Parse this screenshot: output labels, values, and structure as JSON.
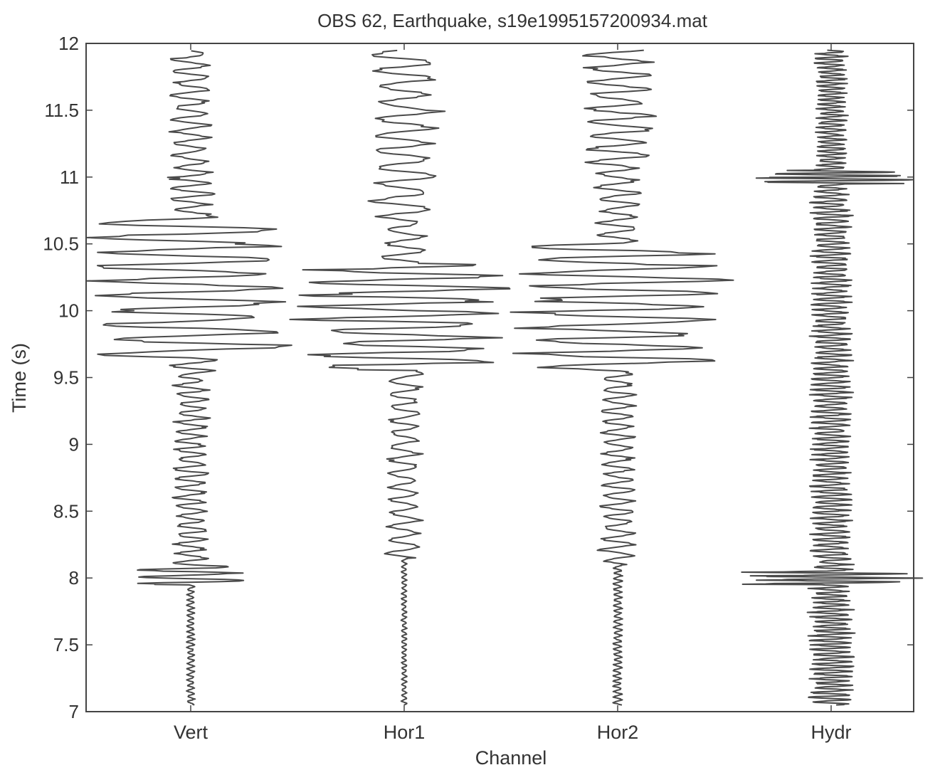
{
  "chart_data": {
    "type": "line",
    "title": "OBS 62, Earthquake,  s19e1995157200934.mat",
    "xlabel": "Channel",
    "ylabel": "Time (s)",
    "ylim": [
      7,
      12
    ],
    "yticks": [
      "7",
      "7.5",
      "8",
      "8.5",
      "9",
      "9.5",
      "10",
      "10.5",
      "11",
      "11.5",
      "12"
    ],
    "categories": [
      "Vert",
      "Hor1",
      "Hor2",
      "Hydr"
    ],
    "grid": false,
    "legend": "none",
    "line_color": "#4a4a4a",
    "series": [
      {
        "name": "Vert",
        "baseline": 1,
        "segments": [
          {
            "t0": 7.05,
            "t1": 7.95,
            "amp": 0.018,
            "period": 0.04
          },
          {
            "t0": 7.95,
            "t1": 8.1,
            "amp": 0.25,
            "period": 0.05
          },
          {
            "t0": 8.1,
            "t1": 9.55,
            "amp": 0.08,
            "period": 0.07
          },
          {
            "t0": 9.55,
            "t1": 9.65,
            "amp": 0.12,
            "period": 0.08
          },
          {
            "t0": 9.65,
            "t1": 10.7,
            "amp": 0.45,
            "period": 0.11
          },
          {
            "t0": 10.7,
            "t1": 11.1,
            "amp": 0.1,
            "period": 0.08
          },
          {
            "t0": 11.1,
            "t1": 11.95,
            "amp": 0.09,
            "period": 0.09
          }
        ]
      },
      {
        "name": "Hor1",
        "baseline": 2,
        "segments": [
          {
            "t0": 7.05,
            "t1": 8.15,
            "amp": 0.012,
            "period": 0.04
          },
          {
            "t0": 8.15,
            "t1": 9.55,
            "amp": 0.08,
            "period": 0.1
          },
          {
            "t0": 9.55,
            "t1": 10.35,
            "amp": 0.47,
            "period": 0.09
          },
          {
            "t0": 10.35,
            "t1": 10.7,
            "amp": 0.1,
            "period": 0.1
          },
          {
            "t0": 10.7,
            "t1": 11.95,
            "amp": 0.16,
            "period": 0.12
          }
        ]
      },
      {
        "name": "Hor2",
        "baseline": 3,
        "segments": [
          {
            "t0": 7.05,
            "t1": 8.1,
            "amp": 0.02,
            "period": 0.04
          },
          {
            "t0": 8.1,
            "t1": 9.55,
            "amp": 0.08,
            "period": 0.08
          },
          {
            "t0": 9.55,
            "t1": 10.5,
            "amp": 0.46,
            "period": 0.1
          },
          {
            "t0": 10.5,
            "t1": 11.1,
            "amp": 0.1,
            "period": 0.09
          },
          {
            "t0": 11.1,
            "t1": 11.95,
            "amp": 0.16,
            "period": 0.1
          }
        ]
      },
      {
        "name": "Hydr",
        "baseline": 4,
        "segments": [
          {
            "t0": 7.05,
            "t1": 7.95,
            "amp": 0.1,
            "period": 0.035
          },
          {
            "t0": 7.95,
            "t1": 8.05,
            "amp": 0.38,
            "period": 0.03
          },
          {
            "t0": 8.05,
            "t1": 10.95,
            "amp": 0.09,
            "period": 0.04
          },
          {
            "t0": 10.95,
            "t1": 11.05,
            "amp": 0.36,
            "period": 0.03
          },
          {
            "t0": 11.05,
            "t1": 11.95,
            "amp": 0.07,
            "period": 0.035
          }
        ]
      }
    ]
  }
}
